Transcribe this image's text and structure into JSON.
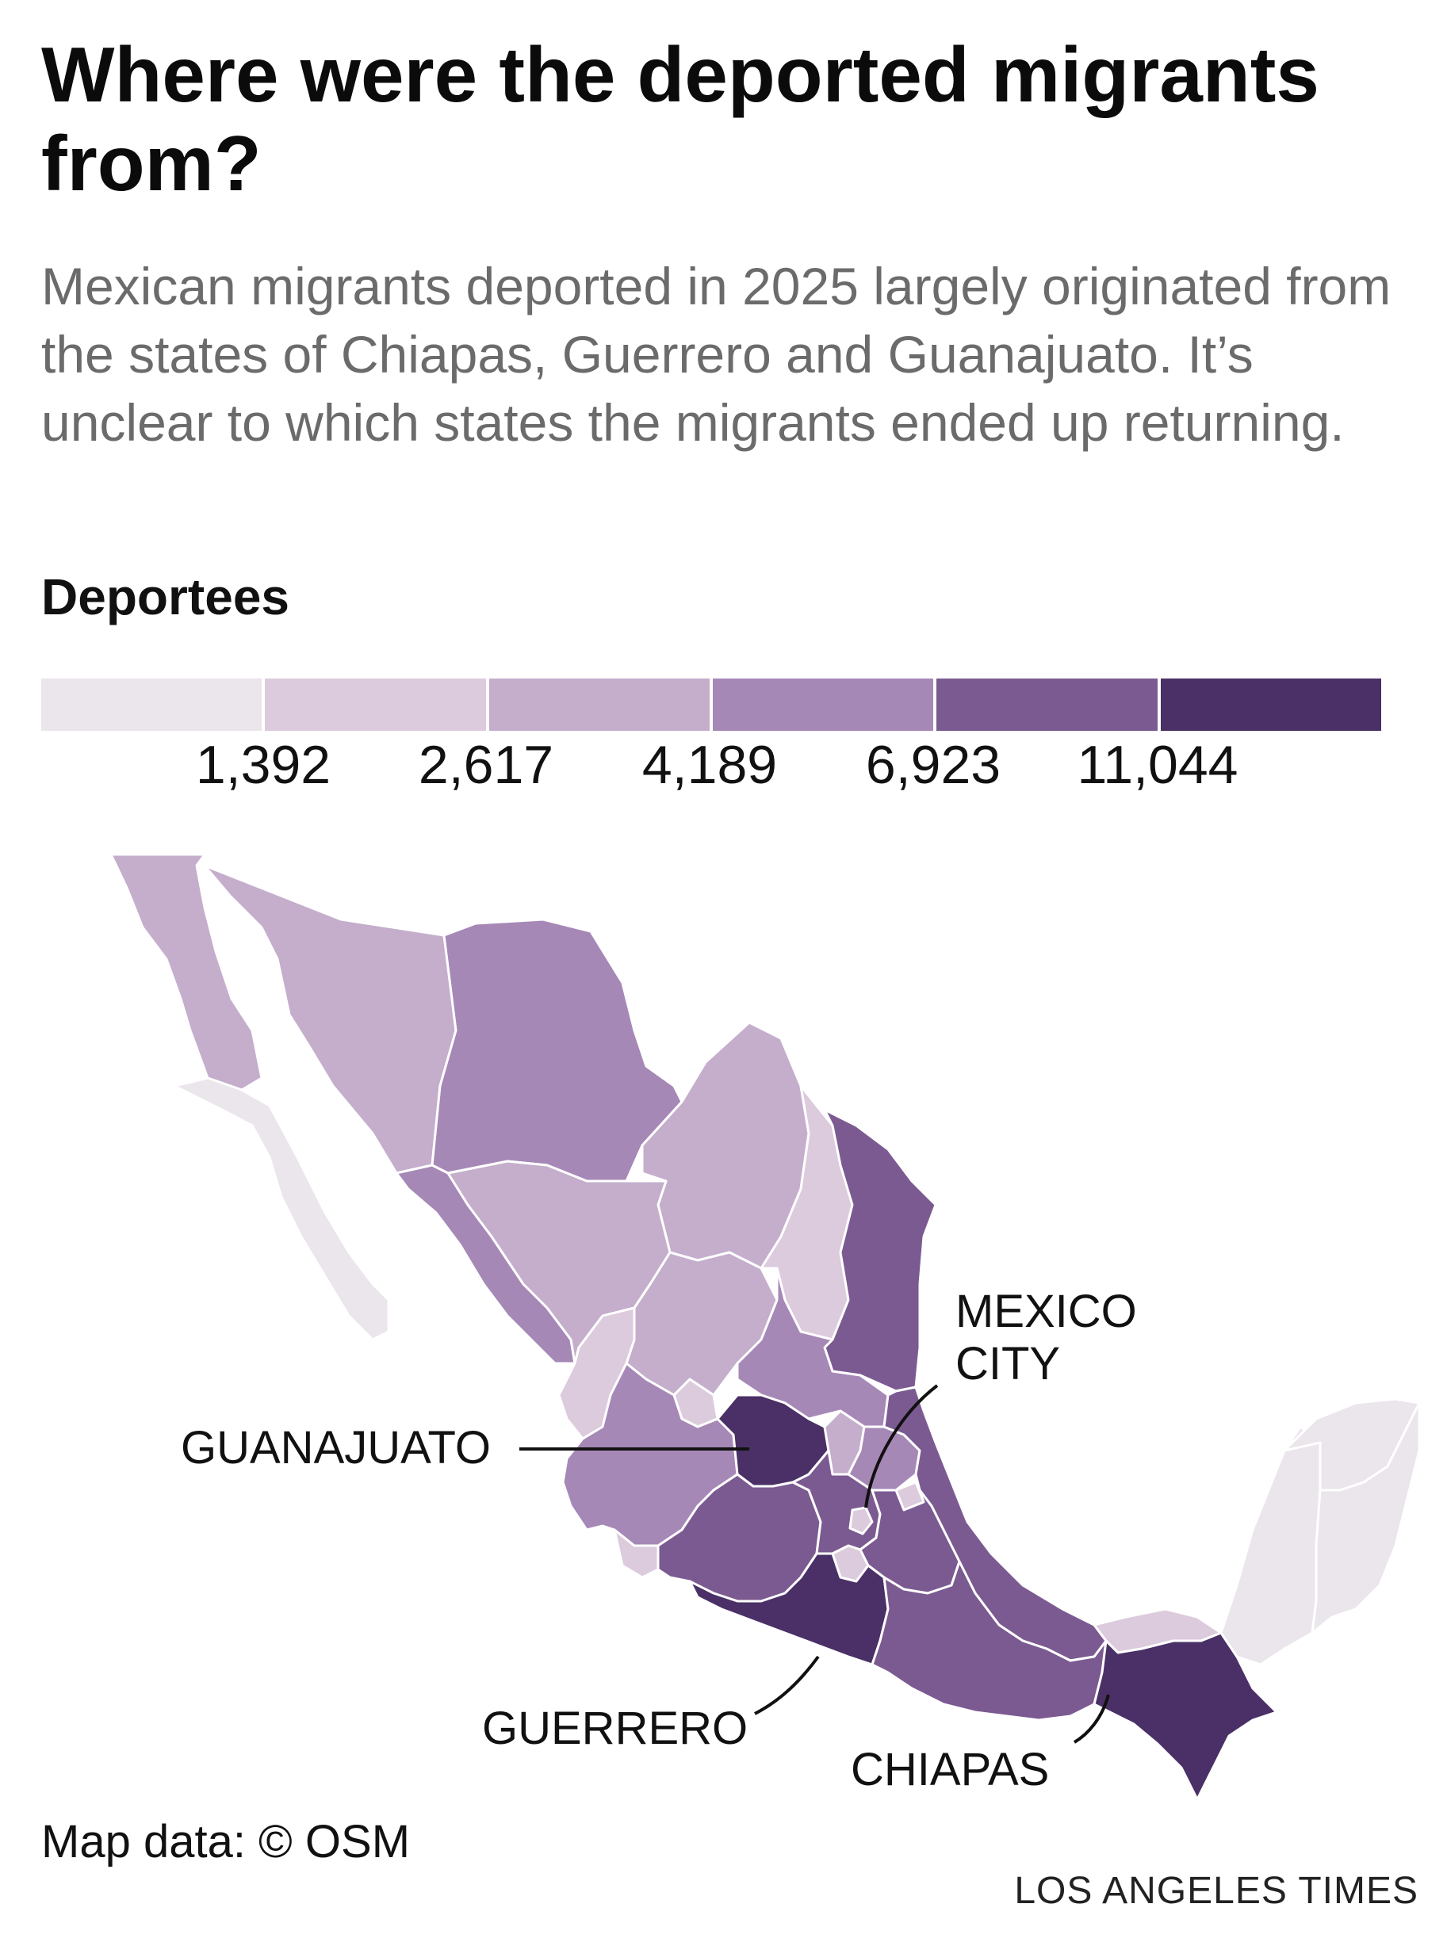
{
  "header": {
    "title": "Where were the deported migrants from?",
    "subtitle": "Mexican migrants deported in 2025 largely originated from the states of Chiapas, Guerrero and Guanajuato. It’s unclear to which states the migrants ended up returning."
  },
  "legend": {
    "title": "Deportees",
    "breaks": [
      "1,392",
      "2,617",
      "4,189",
      "6,923",
      "11,044"
    ],
    "colors": [
      "#ebe5ec",
      "#dccadd",
      "#c4aecc",
      "#a688b7",
      "#7b5a91",
      "#4a3066"
    ]
  },
  "map_data": {
    "type": "choropleth",
    "region": "Mexico",
    "regions": [
      {
        "name": "Baja California",
        "class": 2
      },
      {
        "name": "Baja California Sur",
        "class": 0
      },
      {
        "name": "Sonora",
        "class": 2
      },
      {
        "name": "Chihuahua",
        "class": 3
      },
      {
        "name": "Coahuila",
        "class": 2
      },
      {
        "name": "Nuevo León",
        "class": 1
      },
      {
        "name": "Tamaulipas",
        "class": 4
      },
      {
        "name": "Sinaloa",
        "class": 3
      },
      {
        "name": "Durango",
        "class": 2
      },
      {
        "name": "Zacatecas",
        "class": 2
      },
      {
        "name": "San Luis Potosí",
        "class": 3
      },
      {
        "name": "Nayarit",
        "class": 1
      },
      {
        "name": "Aguascalientes",
        "class": 1
      },
      {
        "name": "Jalisco",
        "class": 3
      },
      {
        "name": "Guanajuato",
        "class": 5
      },
      {
        "name": "Querétaro",
        "class": 2
      },
      {
        "name": "Hidalgo",
        "class": 3
      },
      {
        "name": "Veracruz",
        "class": 4
      },
      {
        "name": "Colima",
        "class": 1
      },
      {
        "name": "Michoacán",
        "class": 4
      },
      {
        "name": "México",
        "class": 4
      },
      {
        "name": "Ciudad de México",
        "class": 1
      },
      {
        "name": "Morelos",
        "class": 1
      },
      {
        "name": "Tlaxcala",
        "class": 1
      },
      {
        "name": "Puebla",
        "class": 4
      },
      {
        "name": "Guerrero",
        "class": 5
      },
      {
        "name": "Oaxaca",
        "class": 4
      },
      {
        "name": "Tabasco",
        "class": 1
      },
      {
        "name": "Chiapas",
        "class": 5
      },
      {
        "name": "Campeche",
        "class": 0
      },
      {
        "name": "Yucatán",
        "class": 0
      },
      {
        "name": "Quintana Roo",
        "class": 0
      }
    ]
  },
  "callouts": {
    "guanajuato": "GUANAJUATO",
    "mexico_city_line1": "MEXICO",
    "mexico_city_line2": "CITY",
    "guerrero": "GUERRERO",
    "chiapas": "CHIAPAS"
  },
  "footer": {
    "credit": "Map data: © OSM",
    "source": "LOS ANGELES TIMES"
  }
}
